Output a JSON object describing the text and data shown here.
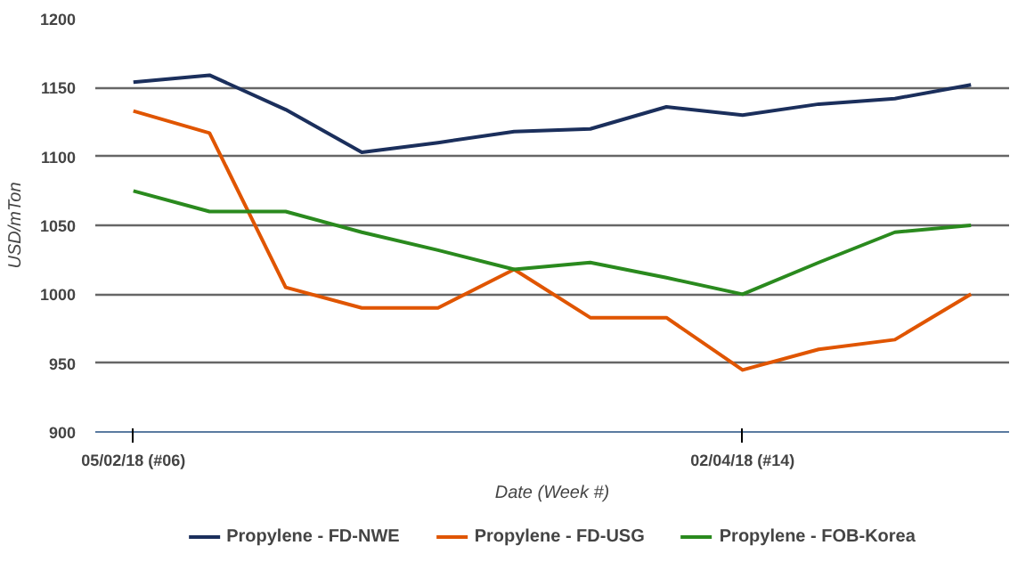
{
  "chart_data": {
    "type": "line",
    "xlabel": "Date (Week #)",
    "ylabel": "USD/mTon",
    "categories": [
      "05/02/18 (#06)",
      null,
      null,
      null,
      null,
      null,
      null,
      null,
      "02/04/18 (#14)",
      null,
      null,
      null
    ],
    "ylim": [
      900,
      1200
    ],
    "yticks": [
      900,
      950,
      1000,
      1050,
      1100,
      1150,
      1200
    ],
    "grid": "y",
    "legend": "bottom",
    "marker": "none",
    "line_style": "solid",
    "series": [
      {
        "name": "Propylene - FD-NWE",
        "color": "#1b2f5c",
        "values": [
          1154,
          1159,
          1134,
          1103,
          1110,
          1118,
          1120,
          1136,
          1130,
          1138,
          1142,
          1152
        ]
      },
      {
        "name": "Propylene - FD-USG",
        "color": "#e05500",
        "values": [
          1133,
          1117,
          1005,
          990,
          990,
          1018,
          983,
          983,
          945,
          960,
          967,
          1000
        ]
      },
      {
        "name": "Propylene - FOB-Korea",
        "color": "#2a8a1e",
        "values": [
          1075,
          1060,
          1060,
          1045,
          1032,
          1018,
          1023,
          1012,
          1000,
          1023,
          1045,
          1050
        ]
      }
    ]
  }
}
